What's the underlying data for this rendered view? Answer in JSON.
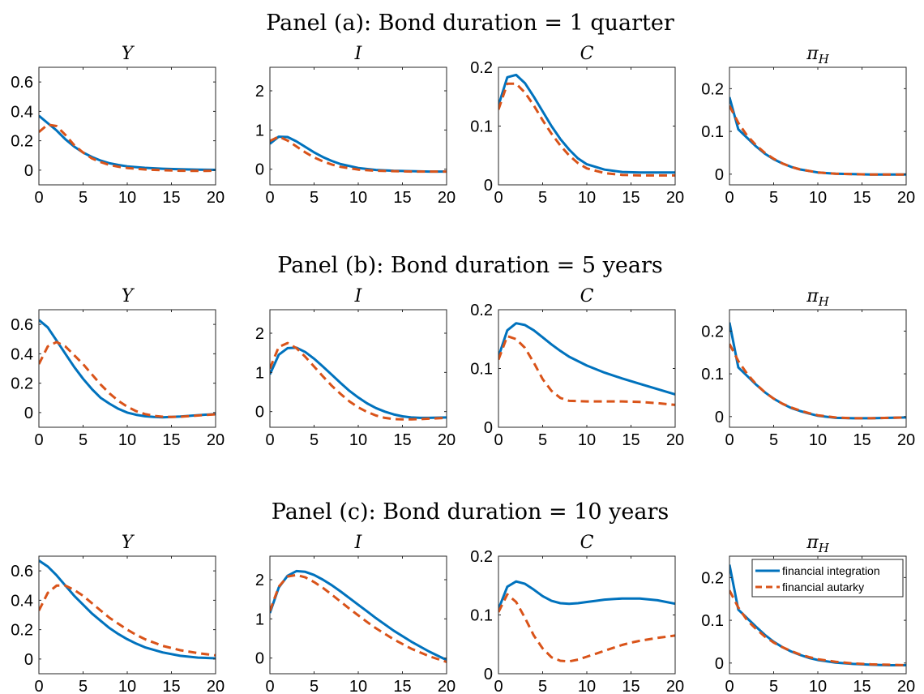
{
  "colors": {
    "integration": "#0072BD",
    "autarky": "#D95319"
  },
  "legend": {
    "integration_label": "financial integration",
    "autarky_label": "financial autarky",
    "location": "northeast"
  },
  "panels": [
    {
      "title": "Panel (a): Bond duration = 1 quarter"
    },
    {
      "title": "Panel (b): Bond duration = 5 years"
    },
    {
      "title": "Panel (c): Bond duration = 10 years"
    }
  ],
  "chart_data": [
    {
      "panel": 0,
      "type": "line",
      "title": "Y",
      "xlim": [
        0,
        20
      ],
      "ylim": [
        -0.1,
        0.7
      ],
      "xticks": [
        0,
        5,
        10,
        15,
        20
      ],
      "yticks": [
        0,
        0.2,
        0.4,
        0.6
      ],
      "ytick_labels": [
        "0",
        "0.2",
        "0.4",
        "0.6"
      ],
      "x": [
        0,
        1,
        2,
        3,
        4,
        5,
        6,
        7,
        8,
        9,
        10,
        12,
        14,
        16,
        18,
        20
      ],
      "series": [
        {
          "name": "financial integration",
          "values": [
            0.37,
            0.32,
            0.27,
            0.21,
            0.16,
            0.12,
            0.09,
            0.065,
            0.047,
            0.035,
            0.026,
            0.016,
            0.01,
            0.006,
            0.003,
            0.002
          ]
        },
        {
          "name": "financial autarky",
          "values": [
            0.26,
            0.31,
            0.3,
            0.24,
            0.17,
            0.12,
            0.08,
            0.055,
            0.035,
            0.023,
            0.015,
            0.005,
            0.0,
            -0.004,
            -0.005,
            -0.004
          ]
        }
      ]
    },
    {
      "panel": 0,
      "type": "line",
      "title": "I",
      "xlim": [
        0,
        20
      ],
      "ylim": [
        -0.4,
        2.6
      ],
      "xticks": [
        0,
        5,
        10,
        15,
        20
      ],
      "yticks": [
        0,
        1,
        2
      ],
      "ytick_labels": [
        "0",
        "1",
        "2"
      ],
      "x": [
        0,
        1,
        2,
        3,
        4,
        5,
        6,
        7,
        8,
        10,
        12,
        14,
        16,
        18,
        20
      ],
      "series": [
        {
          "name": "financial integration",
          "values": [
            0.65,
            0.83,
            0.82,
            0.71,
            0.57,
            0.43,
            0.31,
            0.21,
            0.13,
            0.03,
            -0.02,
            -0.04,
            -0.05,
            -0.06,
            -0.06
          ]
        },
        {
          "name": "financial autarky",
          "values": [
            0.72,
            0.83,
            0.73,
            0.58,
            0.43,
            0.3,
            0.2,
            0.12,
            0.06,
            -0.01,
            -0.04,
            -0.05,
            -0.06,
            -0.06,
            -0.06
          ]
        }
      ]
    },
    {
      "panel": 0,
      "type": "line",
      "title": "C",
      "xlim": [
        0,
        20
      ],
      "ylim": [
        0,
        0.2
      ],
      "xticks": [
        0,
        5,
        10,
        15,
        20
      ],
      "yticks": [
        0,
        0.1,
        0.2
      ],
      "ytick_labels": [
        "0",
        "0.1",
        "0.2"
      ],
      "x": [
        0,
        1,
        2,
        3,
        4,
        5,
        6,
        7,
        8,
        9,
        10,
        12,
        14,
        16,
        18,
        20
      ],
      "series": [
        {
          "name": "financial integration",
          "values": [
            0.135,
            0.183,
            0.187,
            0.173,
            0.15,
            0.125,
            0.1,
            0.078,
            0.06,
            0.045,
            0.035,
            0.026,
            0.022,
            0.021,
            0.021,
            0.021
          ]
        },
        {
          "name": "financial autarky",
          "values": [
            0.128,
            0.172,
            0.172,
            0.157,
            0.135,
            0.11,
            0.087,
            0.067,
            0.05,
            0.037,
            0.028,
            0.02,
            0.017,
            0.016,
            0.016,
            0.016
          ]
        }
      ]
    },
    {
      "panel": 0,
      "type": "line",
      "title": "π_H",
      "xlim": [
        0,
        20
      ],
      "ylim": [
        -0.025,
        0.25
      ],
      "xticks": [
        0,
        5,
        10,
        15,
        20
      ],
      "yticks": [
        0,
        0.1,
        0.2
      ],
      "ytick_labels": [
        "0",
        "0.1",
        "0.2"
      ],
      "x": [
        0,
        1,
        2,
        3,
        4,
        5,
        6,
        7,
        8,
        10,
        12,
        14,
        16,
        18,
        20
      ],
      "series": [
        {
          "name": "financial integration",
          "values": [
            0.18,
            0.105,
            0.085,
            0.065,
            0.048,
            0.035,
            0.025,
            0.017,
            0.011,
            0.004,
            0.001,
            0.0,
            -0.001,
            -0.001,
            -0.001
          ]
        },
        {
          "name": "financial autarky",
          "values": [
            0.16,
            0.12,
            0.09,
            0.068,
            0.05,
            0.036,
            0.025,
            0.017,
            0.011,
            0.004,
            0.001,
            0.0,
            -0.001,
            -0.001,
            -0.001
          ]
        }
      ]
    },
    {
      "panel": 1,
      "type": "line",
      "title": "Y",
      "xlim": [
        0,
        20
      ],
      "ylim": [
        -0.1,
        0.7
      ],
      "xticks": [
        0,
        5,
        10,
        15,
        20
      ],
      "yticks": [
        0,
        0.2,
        0.4,
        0.6
      ],
      "ytick_labels": [
        "0",
        "0.2",
        "0.4",
        "0.6"
      ],
      "x": [
        0,
        1,
        2,
        3,
        4,
        5,
        6,
        7,
        8,
        9,
        10,
        11,
        12,
        13,
        14,
        15,
        16,
        18,
        20
      ],
      "series": [
        {
          "name": "financial integration",
          "values": [
            0.63,
            0.58,
            0.49,
            0.4,
            0.31,
            0.23,
            0.16,
            0.1,
            0.06,
            0.025,
            0.0,
            -0.015,
            -0.025,
            -0.03,
            -0.032,
            -0.03,
            -0.027,
            -0.018,
            -0.01
          ]
        },
        {
          "name": "financial autarky",
          "values": [
            0.33,
            0.45,
            0.48,
            0.45,
            0.39,
            0.33,
            0.26,
            0.19,
            0.13,
            0.08,
            0.04,
            0.01,
            -0.01,
            -0.022,
            -0.028,
            -0.03,
            -0.028,
            -0.02,
            -0.012
          ]
        }
      ]
    },
    {
      "panel": 1,
      "type": "line",
      "title": "I",
      "xlim": [
        0,
        20
      ],
      "ylim": [
        -0.4,
        2.6
      ],
      "xticks": [
        0,
        5,
        10,
        15,
        20
      ],
      "yticks": [
        0,
        1,
        2
      ],
      "ytick_labels": [
        "0",
        "1",
        "2"
      ],
      "x": [
        0,
        1,
        2,
        3,
        4,
        5,
        6,
        7,
        8,
        9,
        10,
        11,
        12,
        13,
        14,
        15,
        16,
        17,
        18,
        20
      ],
      "series": [
        {
          "name": "financial integration",
          "values": [
            0.95,
            1.45,
            1.62,
            1.63,
            1.52,
            1.35,
            1.15,
            0.94,
            0.73,
            0.53,
            0.36,
            0.21,
            0.09,
            0.0,
            -0.07,
            -0.12,
            -0.15,
            -0.16,
            -0.16,
            -0.15
          ]
        },
        {
          "name": "financial autarky",
          "values": [
            1.1,
            1.65,
            1.75,
            1.62,
            1.4,
            1.15,
            0.9,
            0.66,
            0.45,
            0.26,
            0.11,
            -0.01,
            -0.1,
            -0.16,
            -0.19,
            -0.2,
            -0.2,
            -0.19,
            -0.18,
            -0.16
          ]
        }
      ]
    },
    {
      "panel": 1,
      "type": "line",
      "title": "C",
      "xlim": [
        0,
        20
      ],
      "ylim": [
        0,
        0.2
      ],
      "xticks": [
        0,
        5,
        10,
        15,
        20
      ],
      "yticks": [
        0,
        0.1,
        0.2
      ],
      "ytick_labels": [
        "0",
        "0.1",
        "0.2"
      ],
      "x": [
        0,
        1,
        2,
        3,
        4,
        5,
        6,
        7,
        8,
        10,
        12,
        14,
        16,
        18,
        20
      ],
      "series": [
        {
          "name": "financial integration",
          "values": [
            0.12,
            0.165,
            0.177,
            0.174,
            0.165,
            0.153,
            0.141,
            0.13,
            0.12,
            0.105,
            0.093,
            0.083,
            0.074,
            0.065,
            0.056
          ]
        },
        {
          "name": "financial autarky",
          "values": [
            0.115,
            0.155,
            0.15,
            0.135,
            0.11,
            0.082,
            0.062,
            0.05,
            0.045,
            0.044,
            0.044,
            0.044,
            0.043,
            0.041,
            0.038
          ]
        }
      ]
    },
    {
      "panel": 1,
      "type": "line",
      "title": "π_H",
      "xlim": [
        0,
        20
      ],
      "ylim": [
        -0.025,
        0.25
      ],
      "xticks": [
        0,
        5,
        10,
        15,
        20
      ],
      "yticks": [
        0,
        0.1,
        0.2
      ],
      "ytick_labels": [
        "0",
        "0.1",
        "0.2"
      ],
      "x": [
        0,
        1,
        2,
        3,
        4,
        5,
        6,
        7,
        8,
        9,
        10,
        12,
        14,
        16,
        18,
        20
      ],
      "series": [
        {
          "name": "financial integration",
          "values": [
            0.22,
            0.115,
            0.095,
            0.075,
            0.057,
            0.042,
            0.03,
            0.02,
            0.013,
            0.007,
            0.002,
            -0.003,
            -0.004,
            -0.004,
            -0.003,
            -0.002
          ]
        },
        {
          "name": "financial autarky",
          "values": [
            0.17,
            0.13,
            0.1,
            0.076,
            0.057,
            0.042,
            0.03,
            0.021,
            0.014,
            0.008,
            0.003,
            -0.002,
            -0.004,
            -0.004,
            -0.003,
            -0.002
          ]
        }
      ]
    },
    {
      "panel": 2,
      "type": "line",
      "title": "Y",
      "xlim": [
        0,
        20
      ],
      "ylim": [
        -0.1,
        0.7
      ],
      "xticks": [
        0,
        5,
        10,
        15,
        20
      ],
      "yticks": [
        0,
        0.2,
        0.4,
        0.6
      ],
      "ytick_labels": [
        "0",
        "0.2",
        "0.4",
        "0.6"
      ],
      "x": [
        0,
        1,
        2,
        3,
        4,
        5,
        6,
        7,
        8,
        9,
        10,
        11,
        12,
        14,
        16,
        18,
        20
      ],
      "series": [
        {
          "name": "financial integration",
          "values": [
            0.67,
            0.63,
            0.57,
            0.5,
            0.43,
            0.37,
            0.31,
            0.26,
            0.21,
            0.17,
            0.135,
            0.105,
            0.08,
            0.045,
            0.022,
            0.01,
            0.005
          ]
        },
        {
          "name": "financial autarky",
          "values": [
            0.33,
            0.45,
            0.5,
            0.5,
            0.47,
            0.43,
            0.38,
            0.33,
            0.28,
            0.24,
            0.2,
            0.165,
            0.135,
            0.09,
            0.06,
            0.04,
            0.025
          ]
        }
      ]
    },
    {
      "panel": 2,
      "type": "line",
      "title": "I",
      "xlim": [
        0,
        20
      ],
      "ylim": [
        -0.4,
        2.6
      ],
      "xticks": [
        0,
        5,
        10,
        15,
        20
      ],
      "yticks": [
        0,
        1,
        2
      ],
      "ytick_labels": [
        "0",
        "1",
        "2"
      ],
      "x": [
        0,
        1,
        2,
        3,
        4,
        5,
        6,
        7,
        8,
        9,
        10,
        11,
        12,
        14,
        16,
        18,
        20
      ],
      "series": [
        {
          "name": "financial integration",
          "values": [
            1.15,
            1.8,
            2.1,
            2.22,
            2.2,
            2.12,
            2.0,
            1.86,
            1.7,
            1.53,
            1.36,
            1.19,
            1.02,
            0.7,
            0.42,
            0.17,
            -0.05
          ]
        },
        {
          "name": "financial autarky",
          "values": [
            1.2,
            1.82,
            2.08,
            2.12,
            2.06,
            1.94,
            1.79,
            1.62,
            1.44,
            1.26,
            1.09,
            0.92,
            0.76,
            0.48,
            0.24,
            0.05,
            -0.1
          ]
        }
      ]
    },
    {
      "panel": 2,
      "type": "line",
      "title": "C",
      "xlim": [
        0,
        20
      ],
      "ylim": [
        0,
        0.2
      ],
      "xticks": [
        0,
        5,
        10,
        15,
        20
      ],
      "yticks": [
        0,
        0.1,
        0.2
      ],
      "ytick_labels": [
        "0",
        "0.1",
        "0.2"
      ],
      "x": [
        0,
        1,
        2,
        3,
        4,
        5,
        6,
        7,
        8,
        9,
        10,
        11,
        12,
        13,
        14,
        15,
        16,
        18,
        20
      ],
      "series": [
        {
          "name": "financial integration",
          "values": [
            0.11,
            0.148,
            0.157,
            0.153,
            0.143,
            0.132,
            0.124,
            0.12,
            0.119,
            0.12,
            0.122,
            0.124,
            0.126,
            0.127,
            0.128,
            0.128,
            0.128,
            0.125,
            0.119
          ]
        },
        {
          "name": "financial autarky",
          "values": [
            0.105,
            0.135,
            0.122,
            0.095,
            0.065,
            0.043,
            0.028,
            0.022,
            0.021,
            0.024,
            0.029,
            0.034,
            0.039,
            0.044,
            0.049,
            0.053,
            0.056,
            0.061,
            0.065
          ]
        }
      ]
    },
    {
      "panel": 2,
      "type": "line",
      "title": "π_H",
      "xlim": [
        0,
        20
      ],
      "ylim": [
        -0.025,
        0.25
      ],
      "xticks": [
        0,
        5,
        10,
        15,
        20
      ],
      "yticks": [
        0,
        0.1,
        0.2
      ],
      "ytick_labels": [
        "0",
        "0.1",
        "0.2"
      ],
      "legend": true,
      "x": [
        0,
        1,
        2,
        3,
        4,
        5,
        6,
        7,
        8,
        9,
        10,
        12,
        14,
        16,
        18,
        20
      ],
      "series": [
        {
          "name": "financial integration",
          "values": [
            0.23,
            0.125,
            0.105,
            0.085,
            0.066,
            0.05,
            0.037,
            0.027,
            0.019,
            0.012,
            0.007,
            0.001,
            -0.002,
            -0.004,
            -0.005,
            -0.005
          ]
        },
        {
          "name": "financial autarky",
          "values": [
            0.17,
            0.13,
            0.1,
            0.08,
            0.062,
            0.048,
            0.037,
            0.028,
            0.02,
            0.014,
            0.009,
            0.003,
            -0.001,
            -0.003,
            -0.004,
            -0.005
          ]
        }
      ]
    }
  ]
}
